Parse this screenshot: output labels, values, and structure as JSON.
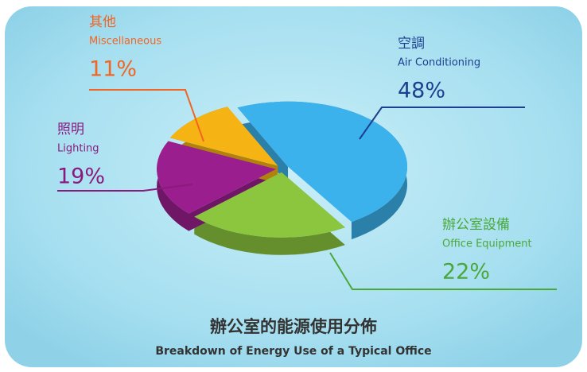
{
  "chart_data": {
    "type": "pie",
    "title": "辦公室的能源使用分佈",
    "subtitle": "Breakdown of Energy Use of a Typical Office",
    "categories": [
      "Air Conditioning",
      "Office Equipment",
      "Lighting",
      "Miscellaneous"
    ],
    "categories_zh": [
      "空調",
      "辦公室設備",
      "照明",
      "其他"
    ],
    "values": [
      48,
      22,
      19,
      11
    ],
    "value_labels": [
      "48%",
      "22%",
      "19%",
      "11%"
    ],
    "colors": [
      "#3cb2ec",
      "#8cc63f",
      "#9b1e8e",
      "#f6b314"
    ]
  }
}
